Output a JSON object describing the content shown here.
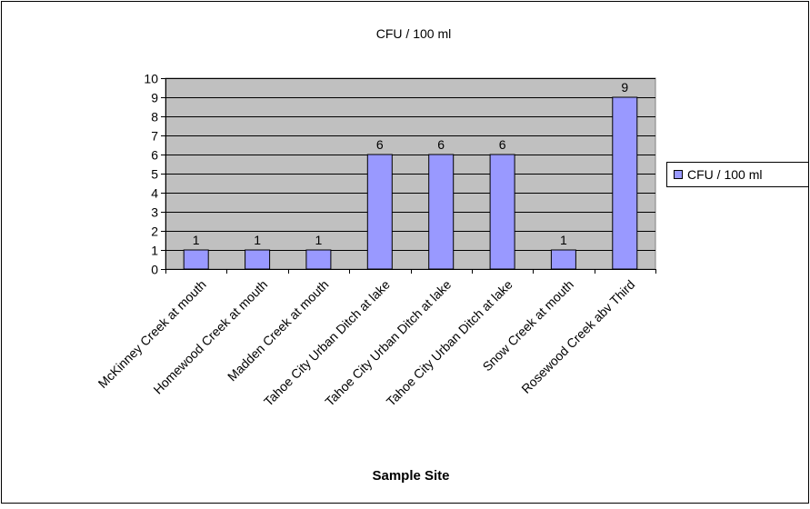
{
  "chart_data": {
    "type": "bar",
    "title": "CFU / 100 ml",
    "xlabel": "Sample Site",
    "ylabel": "",
    "ylim": [
      0,
      10
    ],
    "yticks": [
      0,
      1,
      2,
      3,
      4,
      5,
      6,
      7,
      8,
      9,
      10
    ],
    "grid": true,
    "legend_position": "right",
    "categories": [
      "McKinney Creek at mouth",
      "Homewood Creek at mouth",
      "Madden Creek at mouth",
      "Tahoe City Urban Ditch at lake",
      "Tahoe City Urban Ditch at lake",
      "Tahoe City Urban Ditch at lake",
      "Snow Creek at mouth",
      "Rosewood Creek abv Third"
    ],
    "series": [
      {
        "name": "CFU / 100 ml",
        "values": [
          1,
          1,
          1,
          6,
          6,
          6,
          1,
          9
        ]
      }
    ],
    "colors": {
      "bar": "#9999ff",
      "plot_bg": "#c0c0c0",
      "border": "#000000"
    }
  }
}
